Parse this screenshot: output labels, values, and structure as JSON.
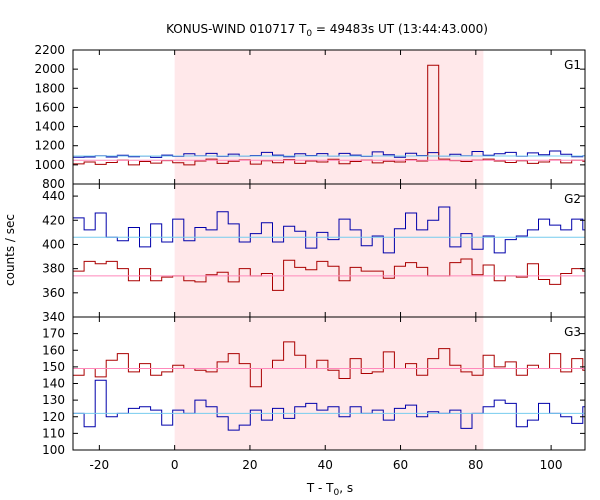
{
  "title": {
    "main": "KONUS-WIND 010717 T",
    "sub": "0",
    "rest": " = 49483s UT (13:44:43.000)"
  },
  "xlabel": {
    "main": "T - T",
    "sub": "0",
    "rest": ", s"
  },
  "ylabel": "counts / sec",
  "colors": {
    "series_a": "#0000aa",
    "series_b": "#aa0000",
    "bg_a": "#77ccee",
    "bg_b": "#ff88bb",
    "highlight": "#ffe8ea"
  },
  "chart_data": [
    {
      "type": "line",
      "panel": "G1",
      "label": "G1",
      "xlim": [
        -27,
        109
      ],
      "ylim": [
        800,
        2200
      ],
      "xticks": [
        -20,
        0,
        20,
        40,
        60,
        80,
        100
      ],
      "yticks": [
        800,
        1000,
        1200,
        1400,
        1600,
        1800,
        2000,
        2200
      ],
      "highlight_range": [
        0,
        82
      ],
      "step_x0": -27,
      "step_dx": 2.944,
      "series": [
        {
          "color_key": "series_a",
          "background": 1093,
          "values": [
            1080,
            1082,
            1095,
            1082,
            1100,
            1085,
            1092,
            1078,
            1102,
            1088,
            1115,
            1095,
            1120,
            1088,
            1112,
            1092,
            1098,
            1130,
            1102,
            1085,
            1115,
            1098,
            1118,
            1092,
            1120,
            1102,
            1088,
            1135,
            1105,
            1080,
            1122,
            1098,
            1128,
            1092,
            1110,
            1095,
            1140,
            1100,
            1115,
            1130,
            1090,
            1125,
            1105,
            1145,
            1110,
            1085,
            1095,
            1090
          ]
        },
        {
          "color_key": "series_b",
          "background": 1048,
          "values": [
            1010,
            1030,
            1005,
            1025,
            1050,
            1000,
            1035,
            1018,
            1045,
            1022,
            1000,
            1040,
            1060,
            1015,
            1038,
            1052,
            1008,
            1042,
            1022,
            1055,
            1015,
            1040,
            1030,
            1058,
            1012,
            1035,
            1050,
            1020,
            1038,
            1030,
            1055,
            1040,
            2040,
            1060,
            1045,
            1035,
            1050,
            1060,
            1040,
            1025,
            1042,
            1015,
            1030,
            1052,
            1020,
            1048,
            1038,
            1052
          ]
        },
        {
          "color_key": "bg_a",
          "background_line": true,
          "y": 1093
        },
        {
          "color_key": "bg_b",
          "background_line": true,
          "y": 1048
        }
      ]
    },
    {
      "type": "line",
      "panel": "G2",
      "label": "G2",
      "xlim": [
        -27,
        109
      ],
      "ylim": [
        340,
        450
      ],
      "xticks": [
        -20,
        0,
        20,
        40,
        60,
        80,
        100
      ],
      "yticks": [
        340,
        360,
        380,
        400,
        420,
        440
      ],
      "highlight_range": [
        0,
        82
      ],
      "step_x0": -27,
      "step_dx": 2.944,
      "series": [
        {
          "color_key": "series_a",
          "background": 406,
          "values": [
            422,
            412,
            426,
            406,
            403,
            414,
            398,
            417,
            402,
            421,
            403,
            414,
            412,
            427,
            417,
            402,
            409,
            418,
            402,
            415,
            411,
            397,
            410,
            404,
            421,
            412,
            399,
            407,
            393,
            413,
            426,
            412,
            420,
            431,
            398,
            409,
            396,
            407,
            393,
            404,
            407,
            412,
            421,
            416,
            412,
            421,
            412,
            404,
            418,
            411,
            412,
            421,
            398,
            412,
            401,
            403,
            412,
            408,
            407,
            412,
            403,
            413,
            412,
            421,
            399,
            413,
            402,
            398,
            406,
            404,
            403,
            393,
            401,
            409
          ]
        },
        {
          "color_key": "series_b",
          "background": 374,
          "values": [
            378,
            386,
            384,
            386,
            380,
            370,
            380,
            370,
            373,
            374,
            370,
            369,
            375,
            377,
            369,
            380,
            374,
            376,
            362,
            387,
            381,
            379,
            386,
            382,
            370,
            381,
            378,
            378,
            372,
            382,
            385,
            381,
            374,
            374,
            385,
            388,
            375,
            383,
            370,
            374,
            373,
            384,
            371,
            367,
            376,
            380,
            378,
            370,
            373,
            366,
            366,
            371,
            376,
            378,
            368,
            382,
            372,
            368,
            376,
            369,
            373,
            385,
            370,
            382,
            374,
            375,
            376,
            368,
            380,
            379,
            384,
            380,
            375,
            374
          ]
        },
        {
          "color_key": "bg_a",
          "background_line": true,
          "y": 406
        },
        {
          "color_key": "bg_b",
          "background_line": true,
          "y": 374
        }
      ]
    },
    {
      "type": "line",
      "panel": "G3",
      "label": "G3",
      "xlim": [
        -27,
        109
      ],
      "ylim": [
        100,
        180
      ],
      "xticks": [
        -20,
        0,
        20,
        40,
        60,
        80,
        100
      ],
      "yticks": [
        100,
        110,
        120,
        130,
        140,
        150,
        160,
        170
      ],
      "highlight_range": [
        0,
        82
      ],
      "step_x0": -27,
      "step_dx": 2.944,
      "series": [
        {
          "color_key": "series_a",
          "background": 122,
          "values": [
            122,
            114,
            142,
            120,
            122,
            125,
            126,
            124,
            115,
            124,
            122,
            130,
            126,
            120,
            112,
            115,
            124,
            118,
            125,
            119,
            126,
            128,
            124,
            126,
            120,
            126,
            122,
            124,
            118,
            125,
            127,
            120,
            123,
            122,
            124,
            113,
            122,
            126,
            130,
            128,
            114,
            118,
            128,
            122,
            120,
            116,
            126,
            118,
            120,
            122,
            124,
            125,
            120,
            121,
            112,
            124,
            120,
            118,
            122,
            125,
            120,
            126,
            118,
            122,
            116,
            124,
            128,
            124,
            122,
            120,
            123,
            127,
            114,
            120
          ]
        },
        {
          "color_key": "series_b",
          "background": 149,
          "values": [
            145,
            149,
            144,
            154,
            158,
            147,
            152,
            145,
            147,
            151,
            149,
            148,
            147,
            153,
            158,
            152,
            138,
            149,
            154,
            165,
            157,
            149,
            154,
            148,
            143,
            155,
            146,
            147,
            159,
            149,
            152,
            145,
            155,
            161,
            151,
            147,
            145,
            157,
            150,
            153,
            145,
            151,
            149,
            158,
            147,
            155,
            148,
            152,
            140,
            152,
            146,
            142,
            149,
            148,
            156,
            150,
            153,
            142,
            147,
            158,
            152,
            145,
            151,
            143,
            148,
            149,
            150,
            147,
            148,
            142,
            149,
            145,
            150,
            147,
            157,
            149,
            143,
            160
          ]
        },
        {
          "color_key": "bg_a",
          "background_line": true,
          "y": 122
        },
        {
          "color_key": "bg_b",
          "background_line": true,
          "y": 149
        }
      ]
    }
  ]
}
